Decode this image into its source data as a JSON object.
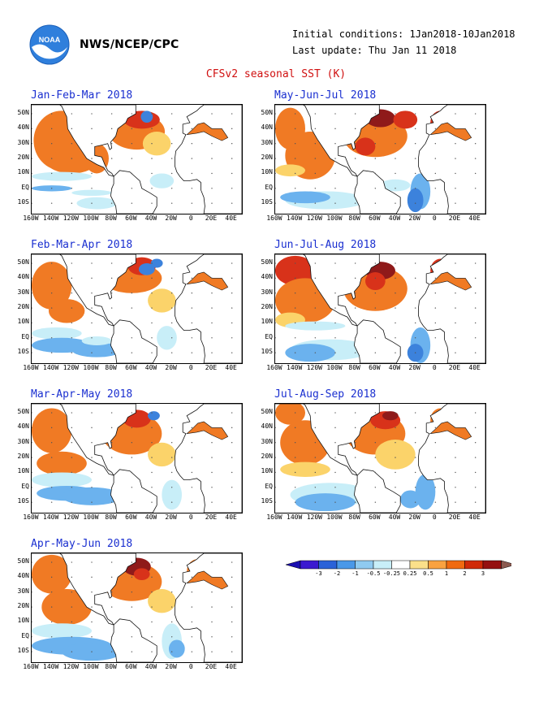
{
  "header": {
    "agency": "NWS/NCEP/CPC",
    "initial_conditions": "Initial conditions: 1Jan2018-10Jan2018",
    "last_update": "Last update: Thu Jan 11 2018",
    "title": "CFSv2 seasonal SST (K)"
  },
  "logo": {
    "text": "NOAA"
  },
  "panels": [
    {
      "title": "Jan-Feb-Mar 2018"
    },
    {
      "title": "May-Jun-Jul 2018"
    },
    {
      "title": "Feb-Mar-Apr 2018"
    },
    {
      "title": "Jun-Jul-Aug 2018"
    },
    {
      "title": "Mar-Apr-May 2018"
    },
    {
      "title": "Jul-Aug-Sep 2018"
    },
    {
      "title": "Apr-May-Jun 2018"
    }
  ],
  "axes": {
    "y_labels": [
      "50N",
      "40N",
      "30N",
      "20N",
      "10N",
      "EQ",
      "10S"
    ],
    "x_labels": [
      "160W",
      "140W",
      "120W",
      "100W",
      "80W",
      "60W",
      "40W",
      "20W",
      "0",
      "20E",
      "40E"
    ]
  },
  "colorbar": {
    "labels": [
      "-3",
      "-2",
      "-1",
      "-0.5",
      "-0.25",
      "0.25",
      "0.5",
      "1",
      "2",
      "3"
    ],
    "colors": [
      "#3b1ad0",
      "#2b62d8",
      "#4a98e8",
      "#8fcaf0",
      "#c8eef8",
      "#ffffff",
      "#fbe08a",
      "#f9a240",
      "#f06a10",
      "#d02a08",
      "#951010"
    ],
    "ends": [
      "#1a0fb0",
      "#8b5a50"
    ]
  },
  "colors": {
    "title_red": "#d01010",
    "panel_title_blue": "#1a2fd0",
    "land": "#ffffff",
    "warm": "#f07a24",
    "cool": "#4c98e8"
  }
}
